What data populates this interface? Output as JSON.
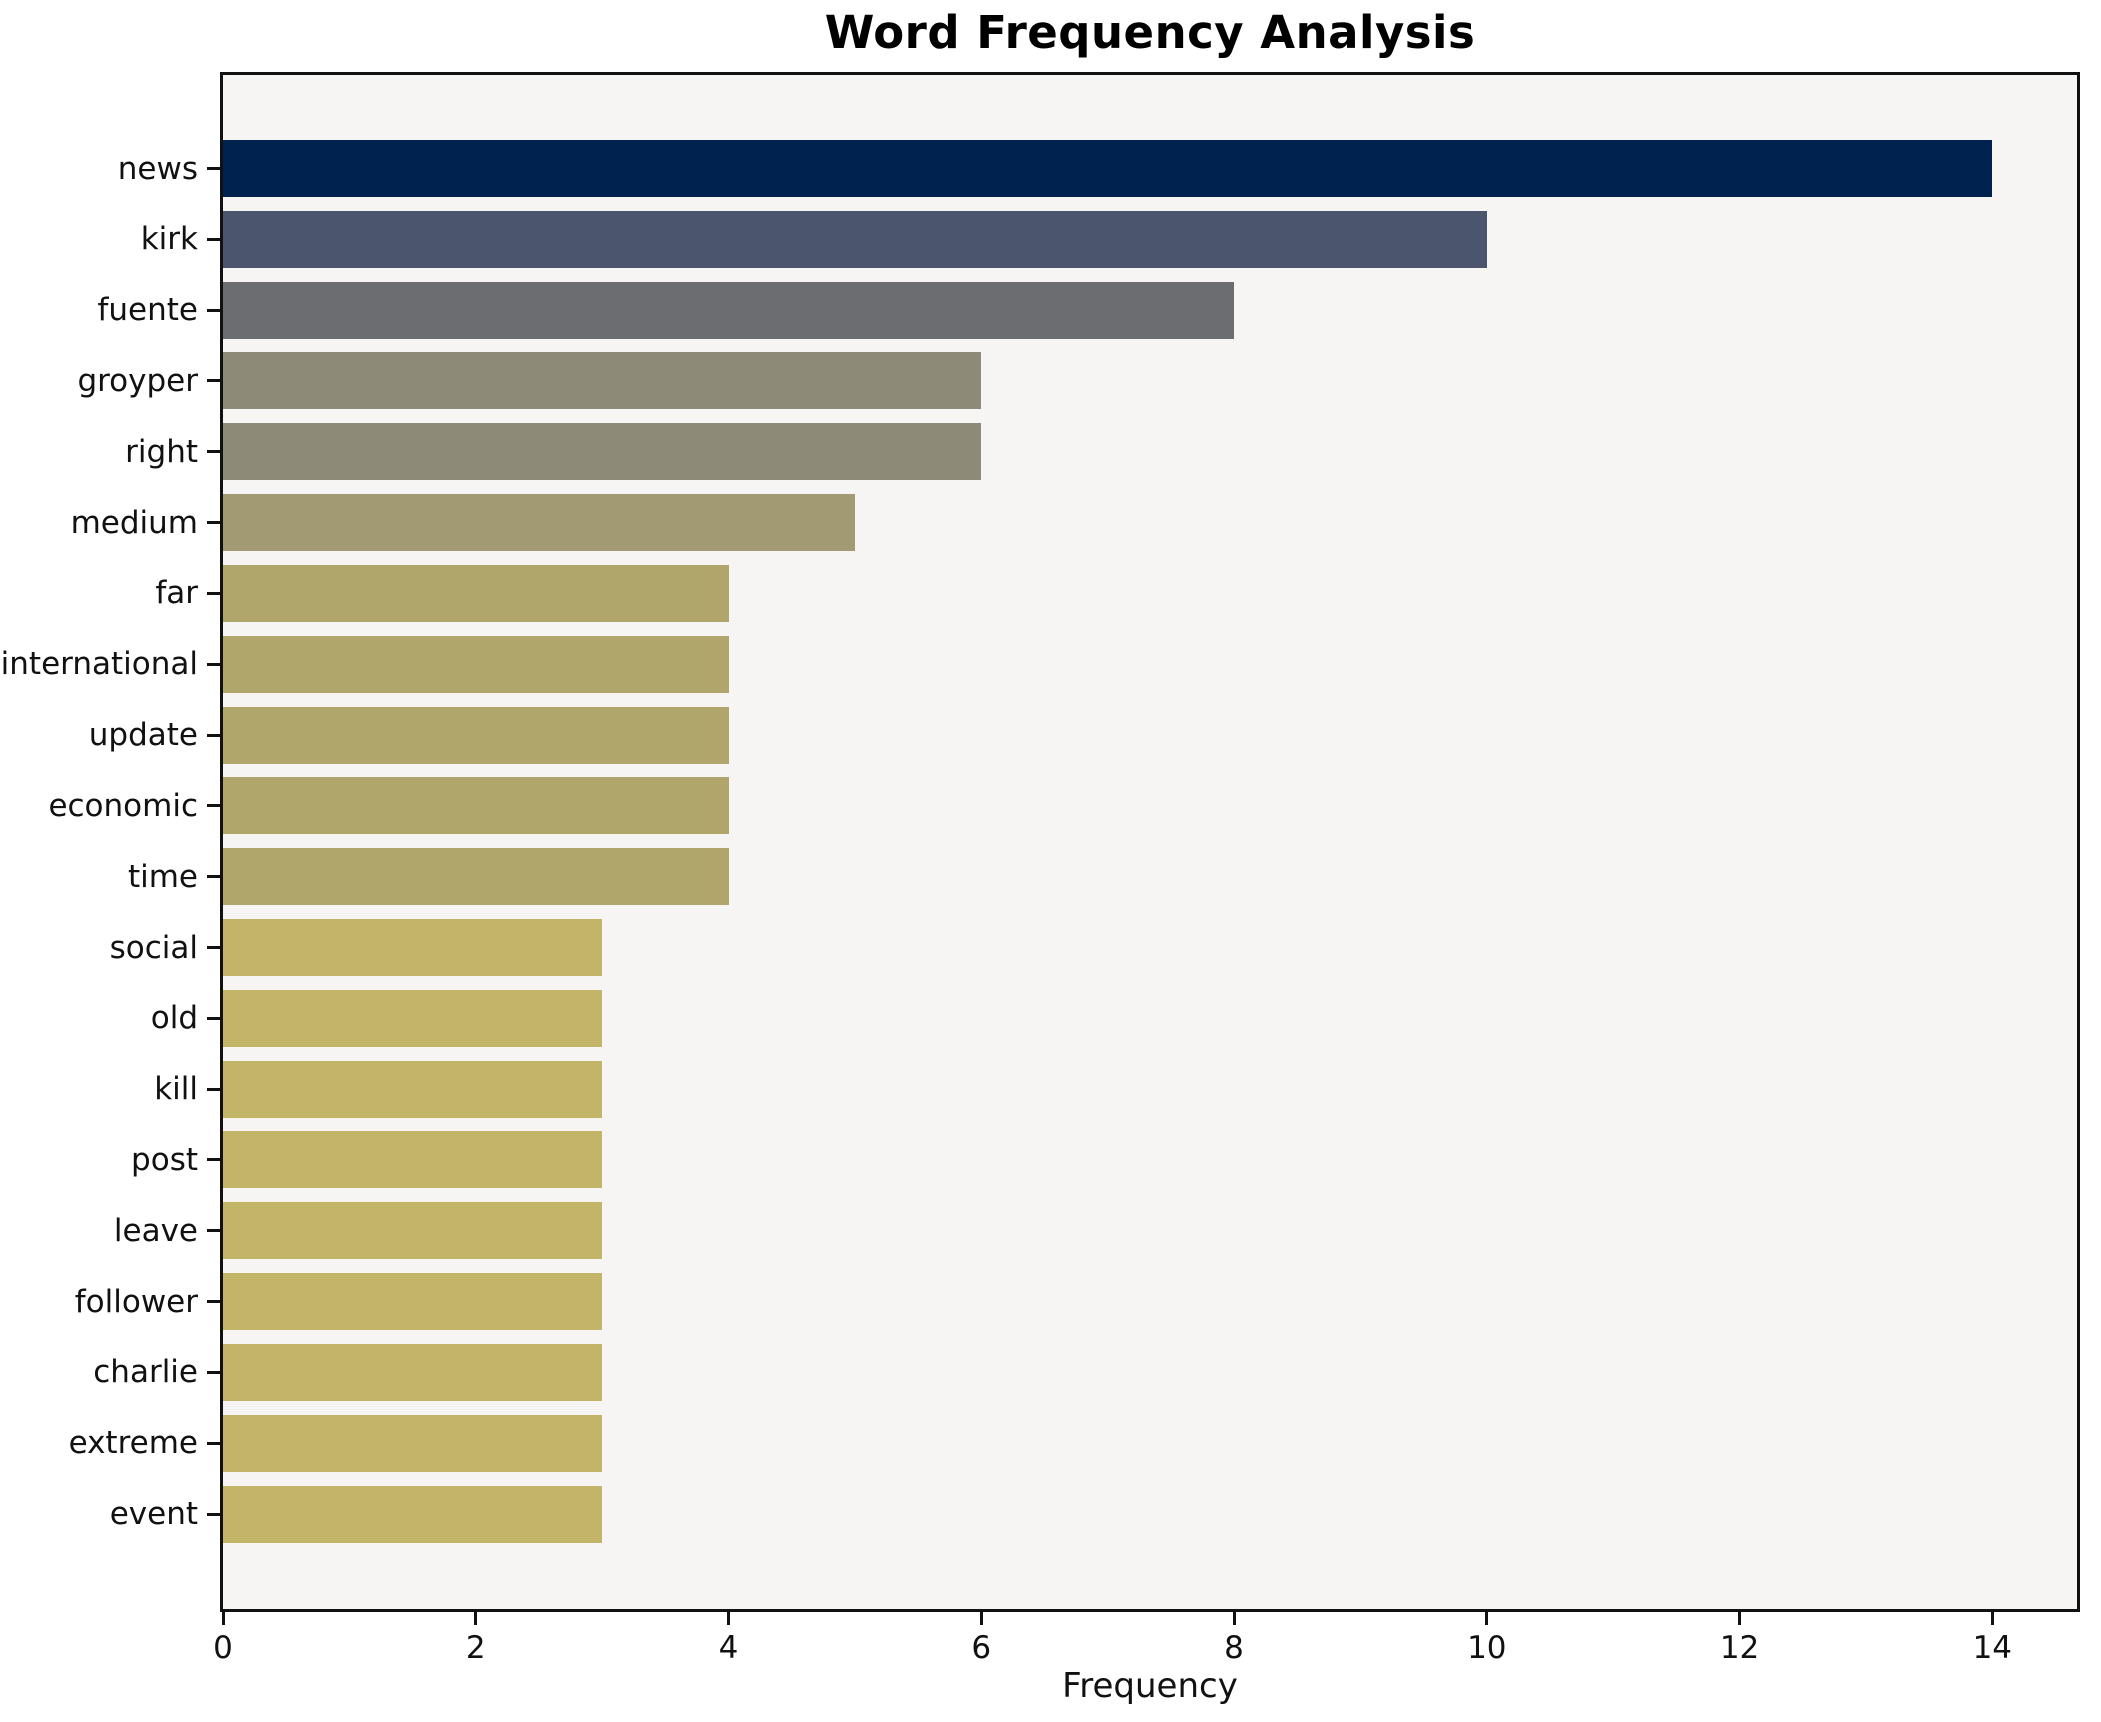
{
  "chart_data": {
    "type": "bar",
    "orientation": "horizontal",
    "title": "Word Frequency Analysis",
    "xlabel": "Frequency",
    "ylabel": "",
    "categories": [
      "news",
      "kirk",
      "fuente",
      "groyper",
      "right",
      "medium",
      "far",
      "international",
      "update",
      "economic",
      "time",
      "social",
      "old",
      "kill",
      "post",
      "leave",
      "follower",
      "charlie",
      "extreme",
      "event"
    ],
    "values": [
      14,
      10,
      8,
      6,
      6,
      5,
      4,
      4,
      4,
      4,
      4,
      3,
      3,
      3,
      3,
      3,
      3,
      3,
      3,
      3
    ],
    "bar_colors": [
      "#00224e",
      "#4c556e",
      "#6c6d71",
      "#8e8a78",
      "#8e8a78",
      "#a19a73",
      "#b0a66c",
      "#b0a66c",
      "#b0a66c",
      "#b0a66c",
      "#b0a66c",
      "#c3b568",
      "#c3b568",
      "#c3b568",
      "#c3b568",
      "#c3b568",
      "#c3b568",
      "#c3b568",
      "#c3b568",
      "#c3b568"
    ],
    "xticks": [
      0,
      2,
      4,
      6,
      8,
      10,
      12,
      14
    ],
    "xlim": [
      0,
      14.67
    ],
    "grid": false,
    "legend": null,
    "plot_bg": "#f6f5f3",
    "figure_bg": "#ffffff",
    "spine_color": "#111111",
    "text_color": "#111111"
  }
}
